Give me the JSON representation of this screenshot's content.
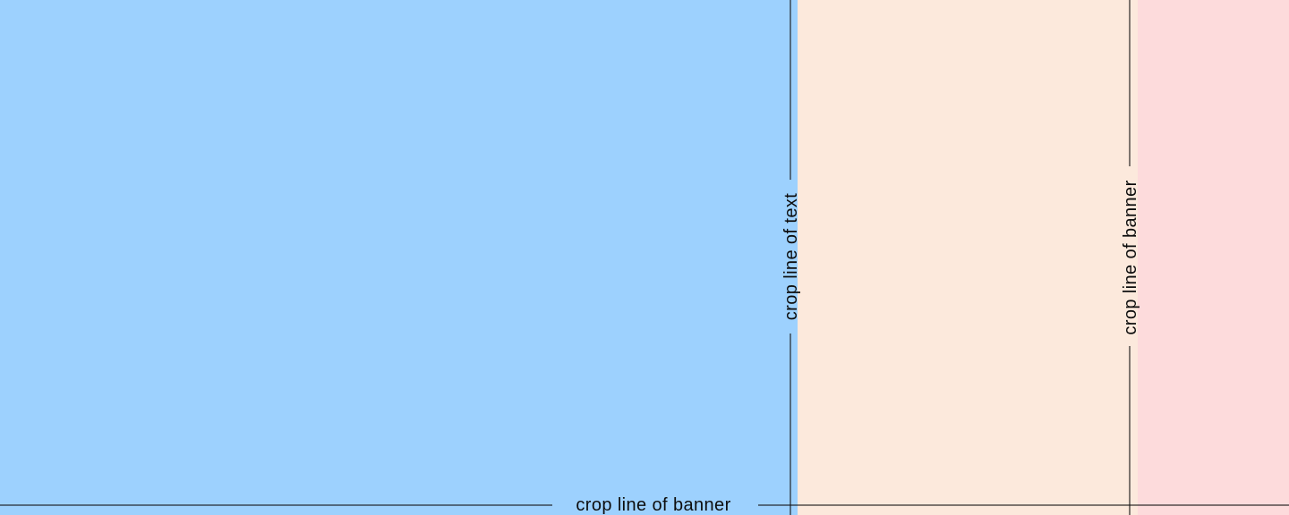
{
  "colors": {
    "region_left": "#9DD1FE",
    "region_middle": "#FCE9DC",
    "region_right": "#FDDBDC",
    "crop_line": "rgba(20,20,20,0.55)",
    "label_text": "#0d0d0d"
  },
  "crop_lines": {
    "text_line": {
      "orientation": "vertical",
      "label": "crop line of text"
    },
    "banner_line_vertical": {
      "orientation": "vertical",
      "label": "crop line of banner"
    },
    "banner_line_horizontal": {
      "orientation": "horizontal",
      "label": "crop line of banner"
    }
  }
}
